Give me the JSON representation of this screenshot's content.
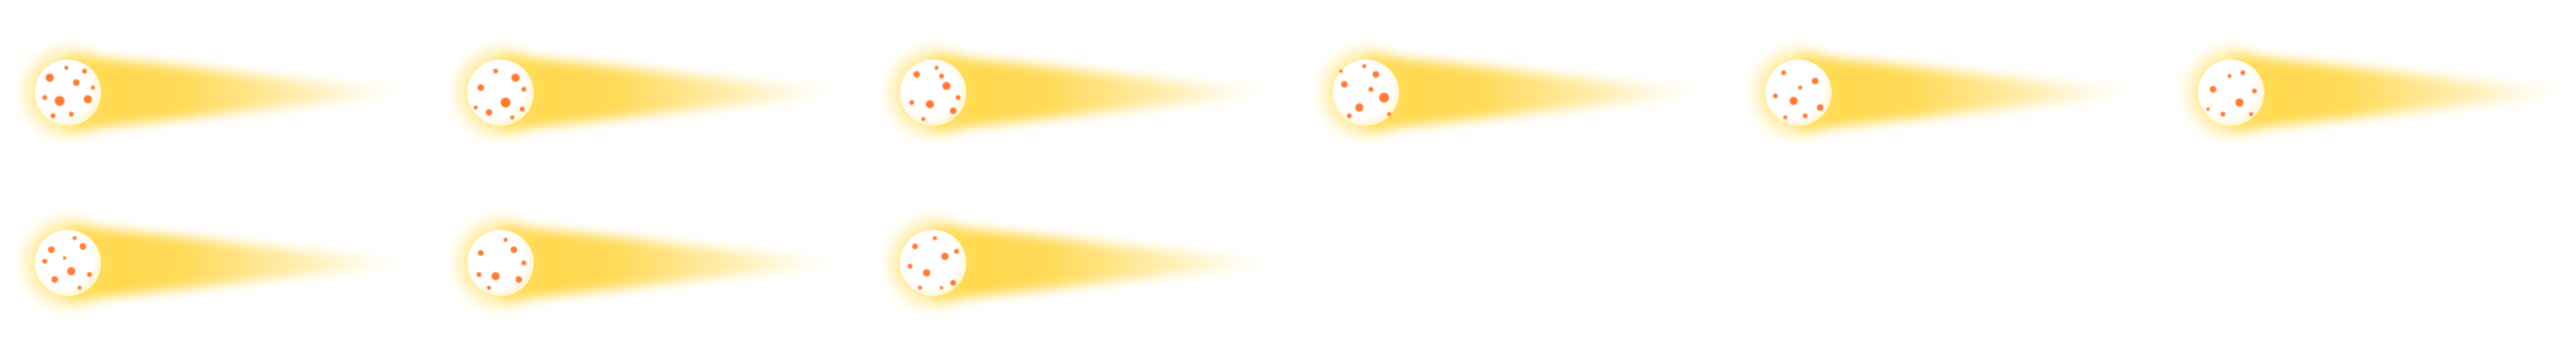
{
  "sprite_sheet": {
    "frame_count": 9,
    "columns": 6,
    "rows": 2,
    "palette": {
      "background": "#ffffff",
      "trail": "#ffd43b",
      "glow": "#ffe066",
      "core": "#ffffff",
      "spot": "#ff6d1f"
    },
    "frames": [
      {
        "index": 1
      },
      {
        "index": 2
      },
      {
        "index": 3
      },
      {
        "index": 4
      },
      {
        "index": 5
      },
      {
        "index": 6
      },
      {
        "index": 7
      },
      {
        "index": 8
      },
      {
        "index": 9
      }
    ]
  }
}
